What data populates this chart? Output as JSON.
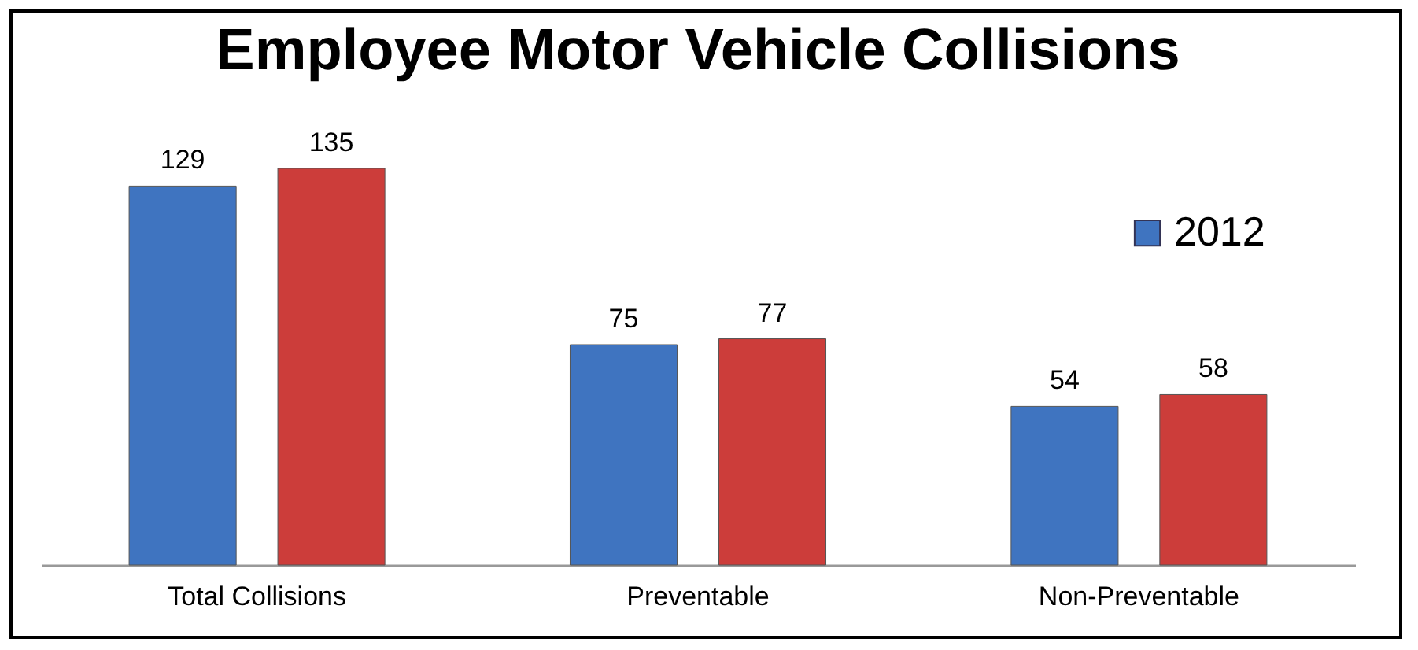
{
  "chart_data": {
    "type": "bar",
    "title": "Employee Motor Vehicle Collisions",
    "categories": [
      "Total Collisions",
      "Preventable",
      "Non-Preventable"
    ],
    "series": [
      {
        "name": "2012",
        "color": "#3f74c0",
        "values": [
          129,
          75,
          54
        ]
      },
      {
        "color": "#cc3d3a",
        "values": [
          135,
          77,
          58
        ]
      }
    ],
    "data_labels": true,
    "legend": "top right",
    "grid": false
  }
}
